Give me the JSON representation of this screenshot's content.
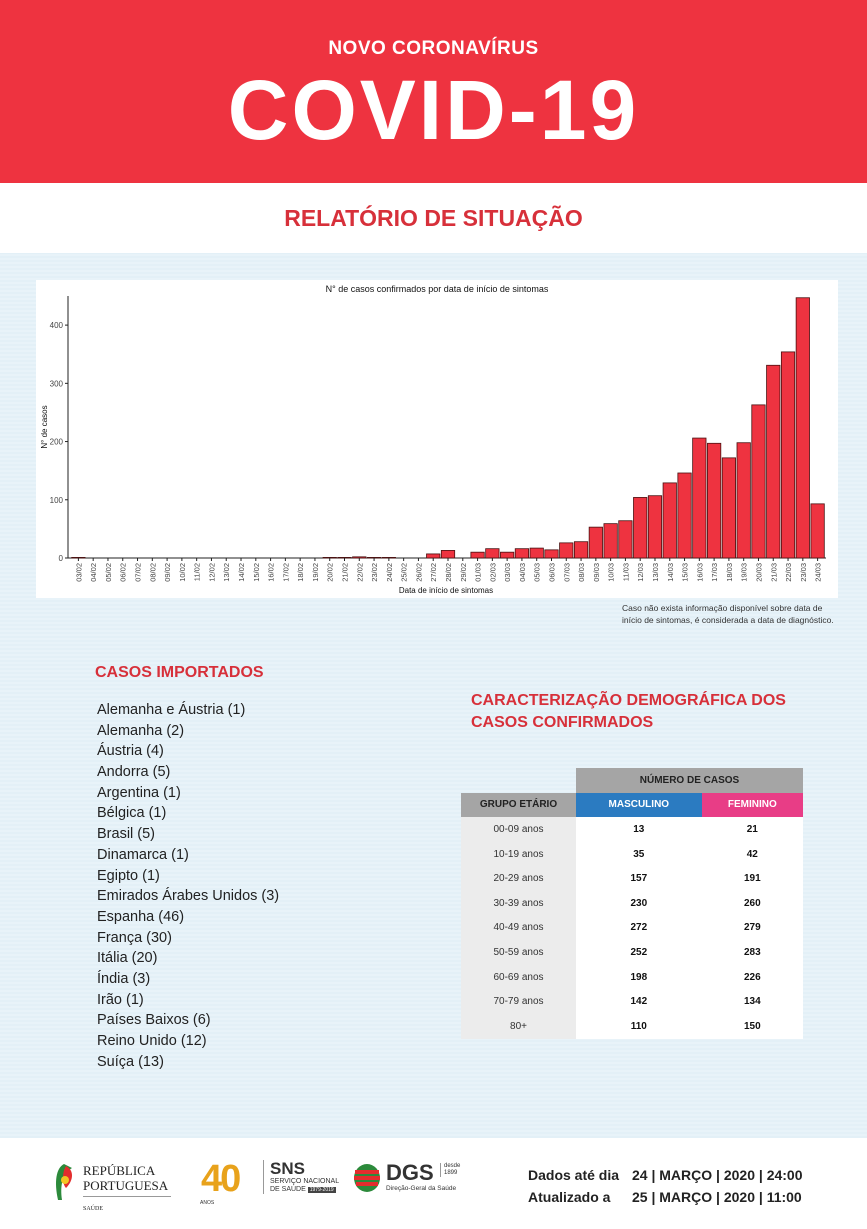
{
  "header": {
    "subtitle": "NOVO CORONAVÍRUS",
    "title": "COVID-19",
    "report": "RELATÓRIO DE SITUAÇÃO"
  },
  "chart_data": {
    "type": "bar",
    "title": "N° de casos confirmados por data de início de sintomas",
    "xlabel": "Data de início de sintomas",
    "ylabel": "N° de casos",
    "ylim": [
      0,
      450
    ],
    "yticks": [
      0,
      100,
      200,
      300,
      400
    ],
    "categories": [
      "03/02",
      "04/02",
      "05/02",
      "06/02",
      "07/02",
      "08/02",
      "09/02",
      "10/02",
      "11/02",
      "12/02",
      "13/02",
      "14/02",
      "15/02",
      "16/02",
      "17/02",
      "18/02",
      "19/02",
      "20/02",
      "21/02",
      "22/02",
      "23/02",
      "24/02",
      "25/02",
      "26/02",
      "27/02",
      "28/02",
      "29/02",
      "01/03",
      "02/03",
      "03/03",
      "04/03",
      "05/03",
      "06/03",
      "07/03",
      "08/03",
      "09/03",
      "10/03",
      "11/03",
      "12/03",
      "13/03",
      "14/03",
      "15/03",
      "16/03",
      "17/03",
      "18/03",
      "19/03",
      "20/03",
      "21/03",
      "22/03",
      "23/03",
      "24/03"
    ],
    "values": [
      1,
      0,
      0,
      0,
      0,
      0,
      0,
      0,
      0,
      0,
      0,
      0,
      0,
      0,
      0,
      0,
      0,
      1,
      1,
      2,
      1,
      1,
      0,
      0,
      7,
      13,
      0,
      10,
      16,
      10,
      16,
      17,
      14,
      26,
      28,
      53,
      59,
      64,
      104,
      107,
      129,
      146,
      206,
      197,
      172,
      198,
      263,
      331,
      354,
      447,
      93
    ],
    "bar_color": "#ee3340"
  },
  "note": [
    "Caso não exista informação disponível sobre data de",
    "início de sintomas, é considerada a data de diagnóstico."
  ],
  "imported": {
    "title": "CASOS IMPORTADOS",
    "items": [
      "Alemanha e Áustria (1)",
      "Alemanha (2)",
      "Áustria (4)",
      "Andorra (5)",
      "Argentina (1)",
      "Bélgica (1)",
      "Brasil (5)",
      "Dinamarca (1)",
      "Egipto (1)",
      "Emirados Árabes Unidos (3)",
      "Espanha (46)",
      "França (30)",
      "Itália (20)",
      "Índia (3)",
      "Irão (1)",
      "Países Baixos (6)",
      "Reino Unido (12)",
      "Suíça (13)"
    ]
  },
  "demographics": {
    "title": [
      "CARACTERIZAÇÃO DEMOGRÁFICA DOS",
      "CASOS CONFIRMADOS"
    ],
    "group_header": "NÚMERO DE CASOS",
    "col_age": "GRUPO ETÁRIO",
    "col_m": "MASCULINO",
    "col_f": "FEMININO",
    "rows": [
      [
        "00-09 anos",
        "13",
        "21"
      ],
      [
        "10-19 anos",
        "35",
        "42"
      ],
      [
        "20-29 anos",
        "157",
        "191"
      ],
      [
        "30-39 anos",
        "230",
        "260"
      ],
      [
        "40-49 anos",
        "272",
        "279"
      ],
      [
        "50-59 anos",
        "252",
        "283"
      ],
      [
        "60-69 anos",
        "198",
        "226"
      ],
      [
        "70-79 anos",
        "142",
        "134"
      ],
      [
        "80+",
        "110",
        "150"
      ]
    ]
  },
  "footer": {
    "rp": [
      "REPÚBLICA",
      "PORTUGUESA",
      "SAÚDE"
    ],
    "sns": [
      "40",
      "ANOS",
      "SNS",
      "SERVIÇO NACIONAL",
      "DE SAÚDE",
      "1979-2019"
    ],
    "dgs": [
      "DGS",
      "desde",
      "1899",
      "Direção-Geral da Saúde"
    ],
    "data_label": "Dados até dia",
    "data_value": "24 | MARÇO | 2020 | 24:00",
    "upd_label": "Atualizado a",
    "upd_value": "25 | MARÇO | 2020 | 11:00"
  }
}
